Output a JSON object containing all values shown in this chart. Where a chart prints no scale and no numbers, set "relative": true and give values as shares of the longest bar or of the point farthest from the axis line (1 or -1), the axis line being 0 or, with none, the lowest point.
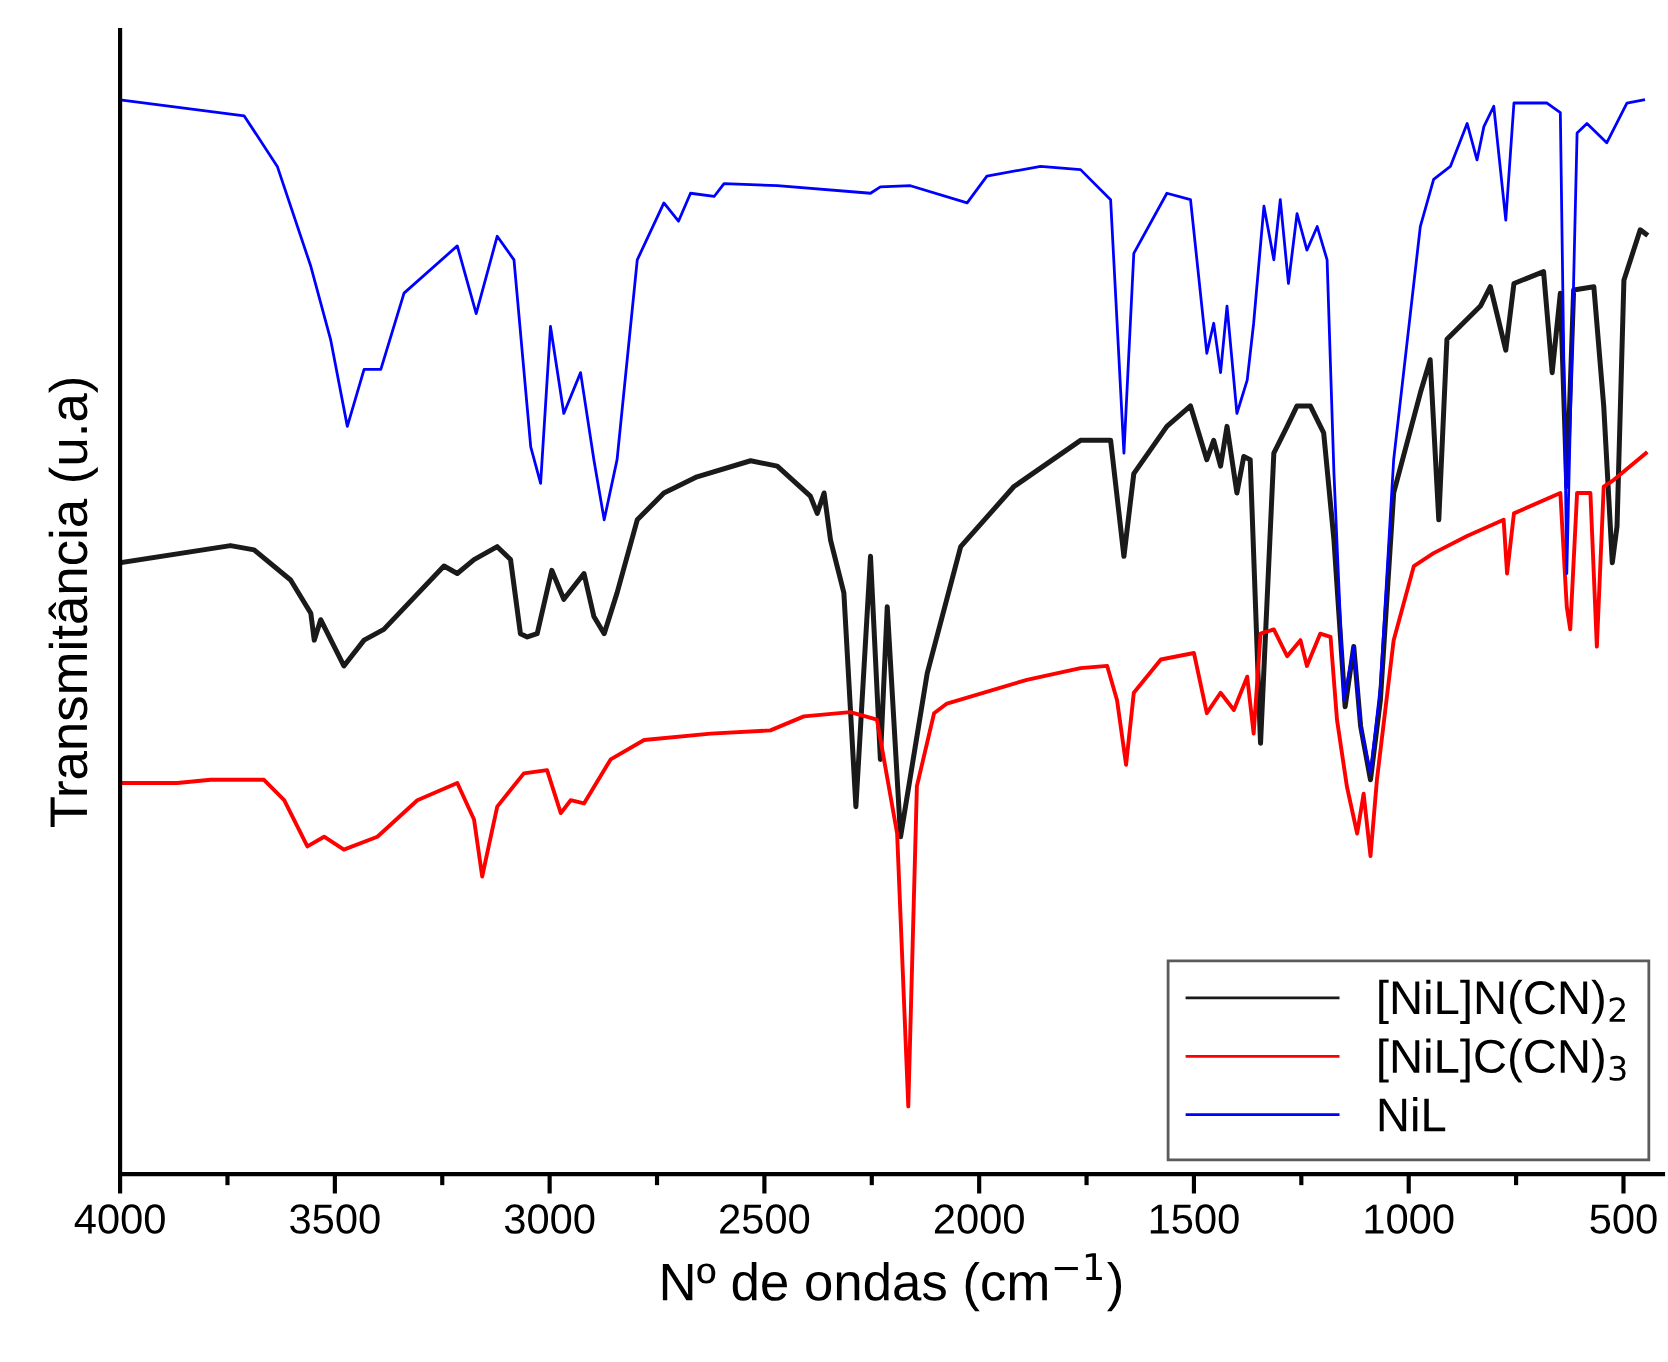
{
  "chart_data": {
    "type": "line",
    "relative": true,
    "xlabel": "Nº de ondas (cm$^{−1}$)",
    "ylabel": "Transmitância (u.a)",
    "xlim": [
      4000,
      408
    ],
    "xticks": [
      4000,
      {
        "value": 3750,
        "label": null
      },
      3500,
      {
        "value": 3250,
        "label": null
      },
      3000,
      {
        "value": 2750,
        "label": null
      },
      2500,
      {
        "value": 2250,
        "label": null
      },
      2000,
      {
        "value": 1750,
        "label": null
      },
      1500,
      {
        "value": 1250,
        "label": null
      },
      1000,
      {
        "value": 750,
        "label": null
      },
      500
    ],
    "tick_labels": "x",
    "grid": false,
    "legend": "bottom right",
    "line_style": "solid",
    "marker": "none",
    "series": [
      {
        "name": "[NiL]N(CN)$_{2}$",
        "color": "#1a1a1a",
        "x": [
          4000,
          3743,
          3688,
          3603,
          3556,
          3548,
          3533,
          3479,
          3432,
          3386,
          3246,
          3215,
          3176,
          3122,
          3091,
          3068,
          3052,
          3029,
          2995,
          2967,
          2920,
          2897,
          2873,
          2843,
          2796,
          2734,
          2703,
          2657,
          2532,
          2470,
          2393,
          2377,
          2361,
          2346,
          2315,
          2287,
          2253,
          2230,
          2214,
          2183,
          2121,
          2043,
          1919,
          1764,
          1694,
          1663,
          1640,
          1563,
          1508,
          1470,
          1454,
          1438,
          1423,
          1400,
          1384,
          1369,
          1345,
          1314,
          1283,
          1260,
          1229,
          1198,
          1174,
          1148,
          1128,
          1112,
          1089,
          1066,
          1035,
          973,
          950,
          930,
          911,
          833,
          810,
          774,
          755,
          686,
          666,
          647,
          632,
          616,
          569,
          546,
          526,
          515,
          499,
          461,
          448
        ],
        "values": [
          0.569,
          0.585,
          0.581,
          0.553,
          0.522,
          0.497,
          0.516,
          0.473,
          0.497,
          0.507,
          0.566,
          0.559,
          0.572,
          0.584,
          0.572,
          0.503,
          0.5,
          0.503,
          0.562,
          0.535,
          0.559,
          0.519,
          0.503,
          0.541,
          0.609,
          0.634,
          0.64,
          0.649,
          0.664,
          0.659,
          0.631,
          0.615,
          0.634,
          0.59,
          0.541,
          0.342,
          0.575,
          0.386,
          0.528,
          0.314,
          0.466,
          0.584,
          0.64,
          0.683,
          0.683,
          0.575,
          0.652,
          0.696,
          0.715,
          0.665,
          0.683,
          0.659,
          0.696,
          0.634,
          0.668,
          0.665,
          0.401,
          0.671,
          0.696,
          0.715,
          0.715,
          0.69,
          0.59,
          0.435,
          0.491,
          0.417,
          0.367,
          0.441,
          0.634,
          0.727,
          0.758,
          0.609,
          0.777,
          0.808,
          0.826,
          0.767,
          0.829,
          0.84,
          0.746,
          0.82,
          0.64,
          0.823,
          0.826,
          0.715,
          0.569,
          0.603,
          0.832,
          0.879,
          0.875
        ]
      },
      {
        "name": "[NiL]C(CN)$_{3}$",
        "color": "#ff0000",
        "x": [
          4000,
          3867,
          3789,
          3665,
          3618,
          3564,
          3525,
          3479,
          3401,
          3308,
          3215,
          3176,
          3157,
          3122,
          3060,
          3006,
          2974,
          2951,
          2920,
          2858,
          2780,
          2625,
          2486,
          2408,
          2300,
          2238,
          2191,
          2165,
          2145,
          2105,
          2075,
          1889,
          1764,
          1702,
          1679,
          1658,
          1640,
          1577,
          1500,
          1470,
          1438,
          1407,
          1376,
          1361,
          1345,
          1314,
          1283,
          1252,
          1237,
          1206,
          1182,
          1167,
          1144,
          1120,
          1105,
          1089,
          1074,
          1035,
          988,
          942,
          864,
          779,
          771,
          755,
          647,
          632,
          624,
          608,
          577,
          562,
          546,
          523,
          448
        ],
        "values": [
          0.364,
          0.364,
          0.367,
          0.367,
          0.348,
          0.305,
          0.314,
          0.302,
          0.314,
          0.348,
          0.364,
          0.33,
          0.277,
          0.342,
          0.373,
          0.376,
          0.336,
          0.348,
          0.345,
          0.386,
          0.404,
          0.41,
          0.413,
          0.426,
          0.43,
          0.423,
          0.317,
          0.063,
          0.361,
          0.429,
          0.438,
          0.46,
          0.471,
          0.473,
          0.441,
          0.381,
          0.448,
          0.479,
          0.485,
          0.429,
          0.448,
          0.432,
          0.463,
          0.41,
          0.503,
          0.507,
          0.482,
          0.497,
          0.473,
          0.503,
          0.5,
          0.423,
          0.361,
          0.317,
          0.354,
          0.296,
          0.367,
          0.497,
          0.566,
          0.578,
          0.594,
          0.609,
          0.559,
          0.615,
          0.634,
          0.528,
          0.507,
          0.634,
          0.634,
          0.491,
          0.64,
          0.646,
          0.671
        ]
      },
      {
        "name": "NiL",
        "color": "#0000ff",
        "x": [
          4000,
          3711,
          3634,
          3556,
          3510,
          3471,
          3432,
          3393,
          3339,
          3215,
          3171,
          3122,
          3083,
          3044,
          3021,
          2998,
          2967,
          2928,
          2897,
          2873,
          2843,
          2796,
          2734,
          2700,
          2672,
          2617,
          2594,
          2470,
          2253,
          2230,
          2160,
          2028,
          1982,
          1857,
          1764,
          1694,
          1663,
          1640,
          1563,
          1508,
          1470,
          1454,
          1438,
          1423,
          1400,
          1376,
          1361,
          1337,
          1314,
          1299,
          1280,
          1260,
          1237,
          1213,
          1190,
          1174,
          1151,
          1128,
          1112,
          1089,
          1066,
          1035,
          973,
          942,
          903,
          864,
          841,
          825,
          802,
          774,
          755,
          678,
          647,
          632,
          608,
          585,
          539,
          492,
          453
        ],
        "values": [
          1.0,
          0.985,
          0.938,
          0.845,
          0.777,
          0.696,
          0.749,
          0.749,
          0.82,
          0.864,
          0.801,
          0.873,
          0.851,
          0.677,
          0.643,
          0.789,
          0.708,
          0.746,
          0.665,
          0.609,
          0.665,
          0.851,
          0.904,
          0.887,
          0.913,
          0.91,
          0.922,
          0.92,
          0.913,
          0.919,
          0.92,
          0.904,
          0.929,
          0.938,
          0.935,
          0.907,
          0.671,
          0.857,
          0.913,
          0.907,
          0.764,
          0.792,
          0.746,
          0.808,
          0.708,
          0.739,
          0.792,
          0.901,
          0.851,
          0.907,
          0.829,
          0.894,
          0.86,
          0.882,
          0.851,
          0.652,
          0.441,
          0.491,
          0.417,
          0.373,
          0.454,
          0.665,
          0.882,
          0.926,
          0.938,
          0.978,
          0.944,
          0.975,
          0.994,
          0.888,
          0.997,
          0.997,
          0.988,
          0.559,
          0.969,
          0.978,
          0.96,
          0.997,
          1.0
        ]
      }
    ]
  }
}
